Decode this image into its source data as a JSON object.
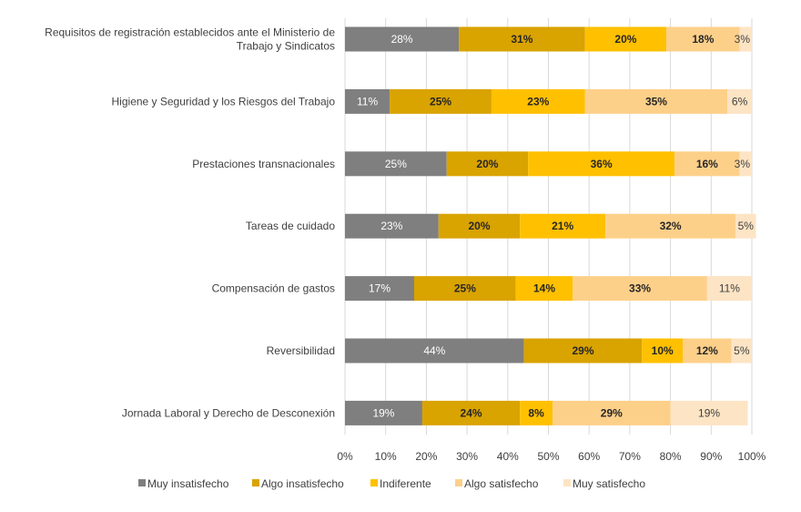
{
  "chart_data": {
    "type": "bar",
    "orientation": "horizontal",
    "stacked": "percent",
    "title": "",
    "xlabel": "",
    "ylabel": "",
    "xlim": [
      0,
      100
    ],
    "tick_labels": [
      "0%",
      "10%",
      "20%",
      "30%",
      "40%",
      "50%",
      "60%",
      "70%",
      "80%",
      "90%",
      "100%"
    ],
    "categories": [
      [
        "Requisitos de registración establecidos ante el Ministerio de",
        "Trabajo y Sindicatos"
      ],
      [
        "Higiene y Seguridad y los Riesgos del Trabajo"
      ],
      [
        "Prestaciones transnacionales"
      ],
      [
        "Tareas de cuidado"
      ],
      [
        "Compensación de gastos"
      ],
      [
        "Reversibilidad"
      ],
      [
        "Jornada Laboral y Derecho de Desconexión"
      ]
    ],
    "series": [
      {
        "name": "Muy insatisfecho",
        "color": "#7f7f7f",
        "label_color": "#ffffff",
        "values": [
          28,
          11,
          25,
          23,
          17,
          44,
          19
        ],
        "labels": [
          "28%",
          "11%",
          "25%",
          "23%",
          "17%",
          "44%",
          "19%"
        ]
      },
      {
        "name": "Algo insatisfecho",
        "color": "#d9a300",
        "label_color": "#262626",
        "values": [
          31,
          25,
          20,
          20,
          25,
          29,
          24
        ],
        "labels": [
          "31%",
          "25%",
          "20%",
          "20%",
          "25%",
          "29%",
          "24%"
        ]
      },
      {
        "name": "Indiferente",
        "color": "#ffc000",
        "label_color": "#262626",
        "values": [
          20,
          23,
          36,
          21,
          14,
          10,
          8
        ],
        "labels": [
          "20%",
          "23%",
          "36%",
          "21%",
          "14%",
          "10%",
          "8%"
        ]
      },
      {
        "name": "Algo satisfecho",
        "color": "#fdd08a",
        "label_color": "#262626",
        "values": [
          18,
          35,
          16,
          32,
          33,
          12,
          29
        ],
        "labels": [
          "18%",
          "35%",
          "16%",
          "32%",
          "33%",
          "12%",
          "29%"
        ]
      },
      {
        "name": "Muy satisfecho",
        "color": "#fde4c4",
        "label_color": "#404040",
        "values": [
          3,
          6,
          3,
          5,
          11,
          5,
          19
        ],
        "labels": [
          "3%",
          "6%",
          "3%",
          "5%",
          "11%",
          "5%",
          "19%"
        ]
      }
    ],
    "grid": true,
    "legend_position": "bottom"
  }
}
